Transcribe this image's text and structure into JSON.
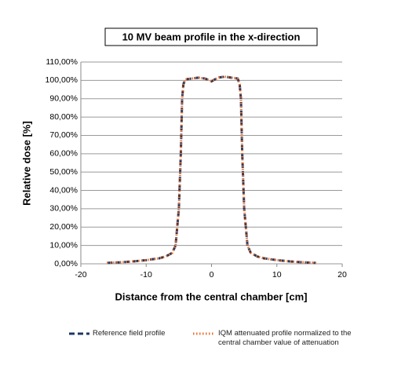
{
  "chart_data": {
    "type": "line",
    "title": "10 MV beam profile in the x-direction",
    "x_label": "Distance from the central chamber [cm]",
    "y_label": "Relative dose [%]",
    "xlim": [
      -20,
      20
    ],
    "xticks": [
      -20,
      -10,
      0,
      10,
      20
    ],
    "ylim": [
      0,
      110
    ],
    "yticks": [
      {
        "value": 0,
        "label": "0,00%"
      },
      {
        "value": 10,
        "label": "10,00%"
      },
      {
        "value": 20,
        "label": "20,00%"
      },
      {
        "value": 30,
        "label": "30,00%"
      },
      {
        "value": 40,
        "label": "40,00%"
      },
      {
        "value": 50,
        "label": "50,00%"
      },
      {
        "value": 60,
        "label": "60,00%"
      },
      {
        "value": 70,
        "label": "70,00%"
      },
      {
        "value": 80,
        "label": "80,00%"
      },
      {
        "value": 90,
        "label": "90,00%"
      },
      {
        "value": 100,
        "label": "100,00%"
      },
      {
        "value": 110,
        "label": "110,00%"
      }
    ],
    "grid": true,
    "x": [
      -16,
      -14,
      -12,
      -10,
      -8,
      -7,
      -6,
      -5.5,
      -5,
      -4.7,
      -4.5,
      -4.3,
      -4,
      -3,
      -2,
      -1,
      0,
      1,
      2,
      3,
      4,
      4.3,
      4.5,
      4.7,
      5,
      5.5,
      6,
      7,
      8,
      10,
      12,
      14,
      16
    ],
    "series": [
      {
        "name": "Reference field profile",
        "color": "#1f3864",
        "dash": "7 4",
        "values": [
          0.5,
          0.8,
          1.3,
          2,
          3,
          4,
          6,
          10,
          30,
          60,
          90,
          98,
          100.5,
          101,
          101.5,
          101,
          99.5,
          101.5,
          102,
          101.5,
          101,
          98,
          90,
          60,
          30,
          10,
          6,
          4,
          3,
          2,
          1.3,
          0.8,
          0.5
        ]
      },
      {
        "name": "IQM attenuated profile normalized to the central chamber value of attenuation",
        "color": "#e97132",
        "dash": "1.5 2.5",
        "values": [
          0.5,
          0.8,
          1.3,
          2,
          3,
          4,
          6,
          10,
          30,
          60,
          90,
          98,
          100.5,
          101,
          101.5,
          101,
          99.5,
          101.5,
          102,
          101.5,
          101,
          98,
          90,
          60,
          30,
          10,
          6,
          4,
          3,
          2,
          1.3,
          0.8,
          0.5
        ]
      }
    ]
  }
}
